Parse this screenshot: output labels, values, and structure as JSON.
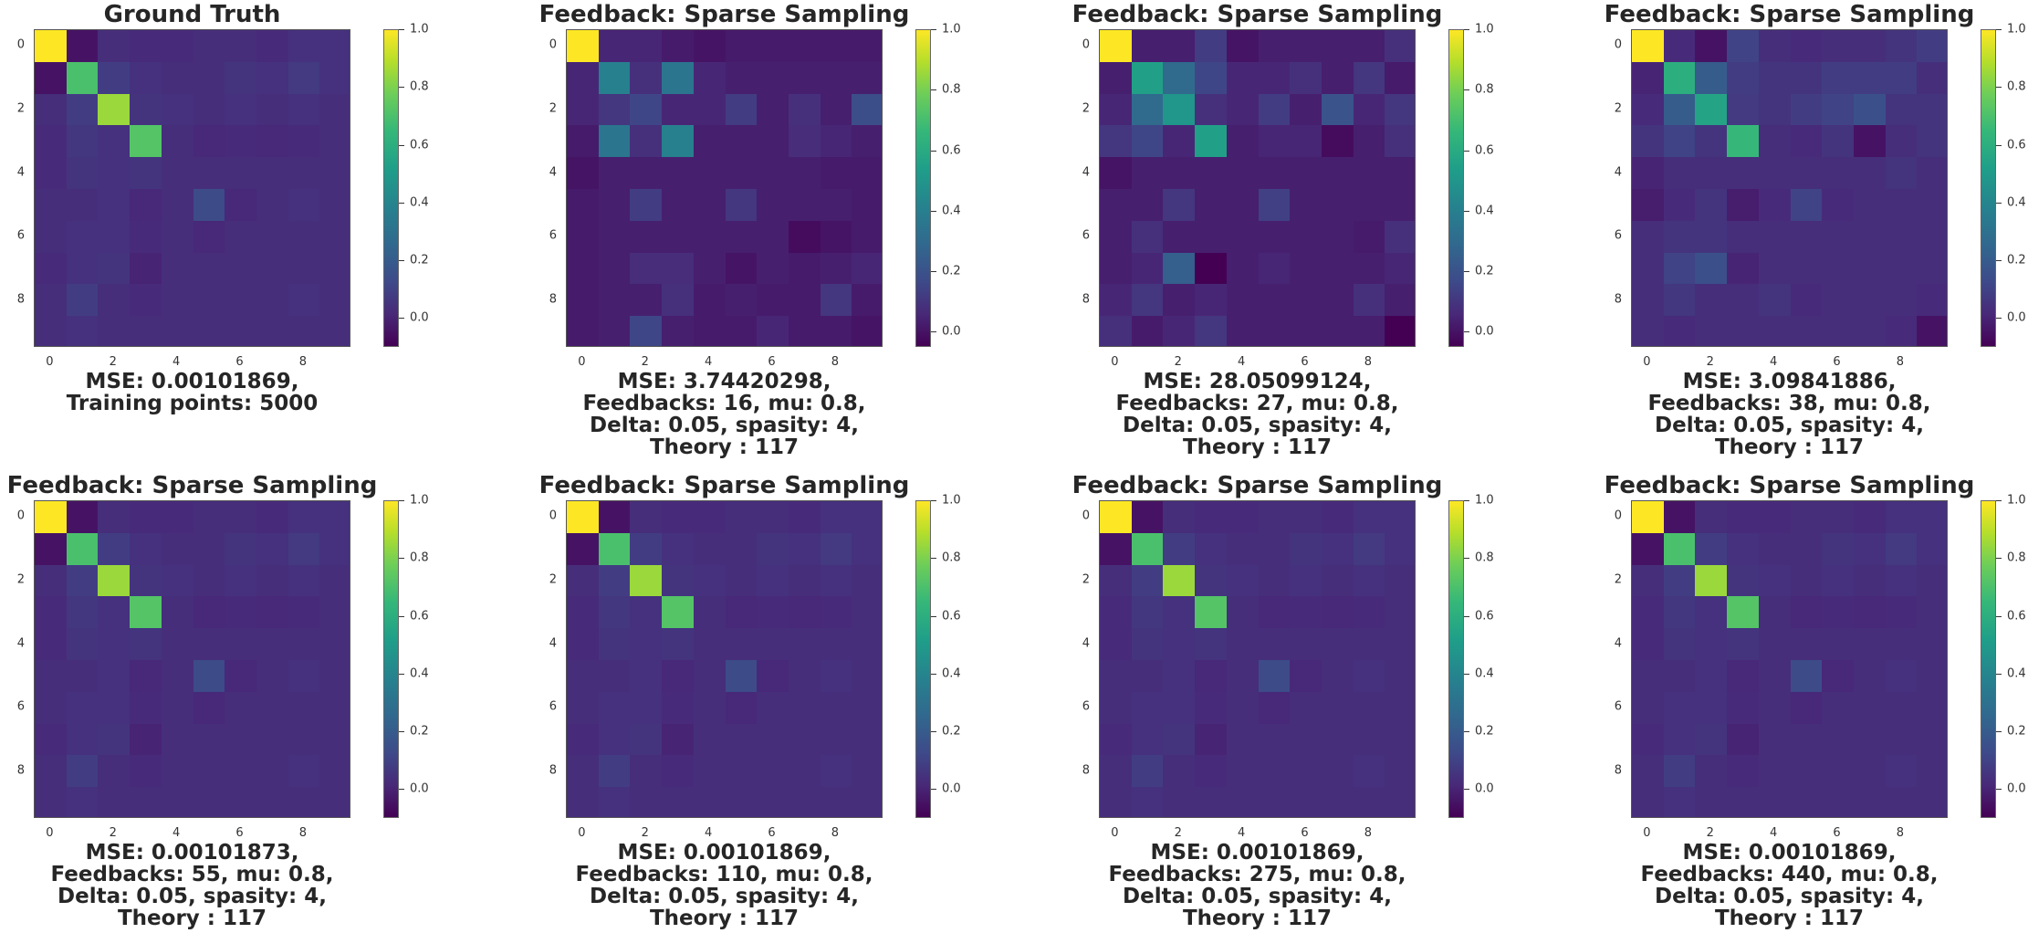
{
  "chart_data": [
    {
      "type": "heatmap",
      "title": "Ground Truth",
      "caption": [
        "MSE: 0.00101869,",
        "Training points: 5000"
      ],
      "xticks": [
        "0",
        "2",
        "4",
        "6",
        "8"
      ],
      "yticks": [
        "0",
        "2",
        "4",
        "6",
        "8"
      ],
      "colorbar_ticks": [
        "1.0",
        "0.8",
        "0.6",
        "0.4",
        "0.2",
        "0.0"
      ],
      "colorbar_range": [
        -0.1,
        1.0
      ],
      "colormap": "viridis",
      "values": [
        [
          1.0,
          -0.05,
          0.03,
          0.02,
          0.02,
          0.03,
          0.03,
          0.02,
          0.04,
          0.04
        ],
        [
          -0.05,
          0.7,
          0.08,
          0.04,
          0.03,
          0.03,
          0.05,
          0.04,
          0.07,
          0.04
        ],
        [
          0.03,
          0.08,
          0.85,
          0.05,
          0.04,
          0.03,
          0.04,
          0.03,
          0.04,
          0.03
        ],
        [
          0.02,
          0.06,
          0.04,
          0.72,
          0.03,
          0.01,
          0.02,
          0.01,
          0.02,
          0.03
        ],
        [
          0.02,
          0.05,
          0.04,
          0.05,
          0.03,
          0.03,
          0.03,
          0.03,
          0.03,
          0.03
        ],
        [
          0.03,
          0.03,
          0.04,
          0.01,
          0.03,
          0.13,
          0.01,
          0.03,
          0.04,
          0.03
        ],
        [
          0.03,
          0.04,
          0.04,
          0.02,
          0.03,
          0.01,
          0.03,
          0.03,
          0.03,
          0.03
        ],
        [
          0.02,
          0.04,
          0.05,
          0.0,
          0.03,
          0.03,
          0.03,
          0.03,
          0.03,
          0.03
        ],
        [
          0.03,
          0.08,
          0.03,
          0.02,
          0.03,
          0.03,
          0.03,
          0.03,
          0.04,
          0.03
        ],
        [
          0.03,
          0.04,
          0.03,
          0.03,
          0.03,
          0.03,
          0.03,
          0.03,
          0.03,
          0.03
        ]
      ]
    },
    {
      "type": "heatmap",
      "title": "Feedback: Sparse Sampling",
      "caption": [
        "MSE: 3.74420298,",
        "Feedbacks: 16, mu: 0.8,",
        "Delta: 0.05, spasity: 4,",
        "Theory : 117"
      ],
      "xticks": [
        "0",
        "2",
        "4",
        "6",
        "8"
      ],
      "yticks": [
        "0",
        "2",
        "4",
        "6",
        "8"
      ],
      "colorbar_ticks": [
        "1.0",
        "0.8",
        "0.6",
        "0.4",
        "0.2",
        "0.0"
      ],
      "colorbar_range": [
        -0.05,
        1.0
      ],
      "colormap": "viridis",
      "values": [
        [
          1.0,
          0.05,
          0.05,
          0.02,
          0.0,
          0.02,
          0.02,
          0.02,
          0.02,
          0.02
        ],
        [
          0.05,
          0.4,
          0.08,
          0.35,
          0.05,
          0.03,
          0.03,
          0.03,
          0.03,
          0.03
        ],
        [
          0.05,
          0.1,
          0.15,
          0.05,
          0.05,
          0.12,
          0.03,
          0.08,
          0.03,
          0.18
        ],
        [
          0.02,
          0.35,
          0.08,
          0.4,
          0.03,
          0.03,
          0.03,
          0.07,
          0.05,
          0.03
        ],
        [
          0.0,
          0.03,
          0.03,
          0.03,
          0.03,
          0.03,
          0.03,
          0.03,
          0.02,
          0.02
        ],
        [
          0.02,
          0.03,
          0.12,
          0.03,
          0.03,
          0.1,
          0.03,
          0.03,
          0.03,
          0.02
        ],
        [
          0.02,
          0.03,
          0.03,
          0.03,
          0.03,
          0.03,
          0.03,
          -0.02,
          0.0,
          0.02
        ],
        [
          0.02,
          0.03,
          0.07,
          0.07,
          0.03,
          0.0,
          0.03,
          0.02,
          0.03,
          0.05
        ],
        [
          0.02,
          0.03,
          0.03,
          0.08,
          0.02,
          0.03,
          0.02,
          0.02,
          0.1,
          0.02
        ],
        [
          0.02,
          0.03,
          0.15,
          0.03,
          0.02,
          0.02,
          0.05,
          0.02,
          0.02,
          0.0
        ]
      ]
    },
    {
      "type": "heatmap",
      "title": "Feedback: Sparse Sampling",
      "caption": [
        "MSE: 28.05099124,",
        "Feedbacks: 27, mu: 0.8,",
        "Delta: 0.05, spasity: 4,",
        "Theory : 117"
      ],
      "xticks": [
        "0",
        "2",
        "4",
        "6",
        "8"
      ],
      "yticks": [
        "0",
        "2",
        "4",
        "6",
        "8"
      ],
      "colorbar_ticks": [
        "1.0",
        "0.8",
        "0.6",
        "0.4",
        "0.2",
        "0.0"
      ],
      "colorbar_range": [
        -0.05,
        1.0
      ],
      "colormap": "viridis",
      "values": [
        [
          1.0,
          0.03,
          0.03,
          0.12,
          0.0,
          0.03,
          0.03,
          0.03,
          0.03,
          0.08
        ],
        [
          0.03,
          0.55,
          0.3,
          0.15,
          0.05,
          0.05,
          0.08,
          0.03,
          0.1,
          0.02
        ],
        [
          0.05,
          0.3,
          0.5,
          0.08,
          0.05,
          0.12,
          0.03,
          0.2,
          0.05,
          0.1
        ],
        [
          0.1,
          0.15,
          0.05,
          0.55,
          0.03,
          0.05,
          0.05,
          -0.02,
          0.03,
          0.08
        ],
        [
          0.0,
          0.03,
          0.03,
          0.03,
          0.03,
          0.03,
          0.03,
          0.03,
          0.03,
          0.03
        ],
        [
          0.03,
          0.03,
          0.1,
          0.03,
          0.03,
          0.13,
          0.03,
          0.03,
          0.03,
          0.03
        ],
        [
          0.03,
          0.08,
          0.03,
          0.03,
          0.03,
          0.03,
          0.03,
          0.03,
          0.02,
          0.08
        ],
        [
          0.03,
          0.05,
          0.25,
          -0.05,
          0.03,
          0.05,
          0.03,
          0.03,
          0.03,
          0.05
        ],
        [
          0.05,
          0.1,
          0.03,
          0.05,
          0.03,
          0.03,
          0.03,
          0.03,
          0.08,
          0.03
        ],
        [
          0.08,
          0.02,
          0.05,
          0.1,
          0.03,
          0.03,
          0.03,
          0.03,
          0.03,
          -0.05
        ]
      ]
    },
    {
      "type": "heatmap",
      "title": "Feedback: Sparse Sampling",
      "caption": [
        "MSE: 3.09841886,",
        "Feedbacks: 38, mu: 0.8,",
        "Delta: 0.05, spasity: 4,",
        "Theory : 117"
      ],
      "xticks": [
        "0",
        "2",
        "4",
        "6",
        "8"
      ],
      "yticks": [
        "0",
        "2",
        "4",
        "6",
        "8"
      ],
      "colorbar_ticks": [
        "1.0",
        "0.8",
        "0.6",
        "0.4",
        "0.2",
        "0.0"
      ],
      "colorbar_range": [
        -0.1,
        1.0
      ],
      "colormap": "viridis",
      "values": [
        [
          1.0,
          0.02,
          -0.05,
          0.1,
          0.03,
          0.02,
          0.03,
          0.03,
          0.05,
          0.08
        ],
        [
          0.0,
          0.6,
          0.2,
          0.08,
          0.05,
          0.05,
          0.08,
          0.08,
          0.08,
          0.03
        ],
        [
          0.02,
          0.2,
          0.55,
          0.07,
          0.05,
          0.08,
          0.1,
          0.15,
          0.05,
          0.05
        ],
        [
          0.05,
          0.1,
          0.05,
          0.65,
          0.03,
          0.02,
          0.05,
          -0.05,
          0.03,
          0.05
        ],
        [
          0.0,
          0.03,
          0.03,
          0.03,
          0.03,
          0.03,
          0.03,
          0.03,
          0.05,
          0.03
        ],
        [
          -0.02,
          0.02,
          0.05,
          -0.02,
          0.02,
          0.1,
          0.02,
          0.03,
          0.03,
          0.03
        ],
        [
          0.03,
          0.05,
          0.05,
          0.03,
          0.03,
          0.03,
          0.03,
          0.03,
          0.03,
          0.03
        ],
        [
          0.03,
          0.1,
          0.15,
          0.0,
          0.03,
          0.03,
          0.03,
          0.03,
          0.03,
          0.03
        ],
        [
          0.03,
          0.06,
          0.03,
          0.03,
          0.05,
          0.02,
          0.03,
          0.03,
          0.03,
          0.02
        ],
        [
          0.03,
          0.02,
          0.03,
          0.03,
          0.03,
          0.03,
          0.03,
          0.03,
          0.02,
          -0.05
        ]
      ]
    },
    {
      "type": "heatmap",
      "title": "Feedback: Sparse Sampling",
      "caption": [
        "MSE: 0.00101873,",
        "Feedbacks: 55, mu: 0.8,",
        "Delta: 0.05, spasity: 4,",
        "Theory : 117"
      ],
      "xticks": [
        "0",
        "2",
        "4",
        "6",
        "8"
      ],
      "yticks": [
        "0",
        "2",
        "4",
        "6",
        "8"
      ],
      "colorbar_ticks": [
        "1.0",
        "0.8",
        "0.6",
        "0.4",
        "0.2",
        "0.0"
      ],
      "colorbar_range": [
        -0.1,
        1.0
      ],
      "colormap": "viridis",
      "values": [
        [
          1.0,
          -0.05,
          0.03,
          0.02,
          0.02,
          0.03,
          0.03,
          0.02,
          0.04,
          0.04
        ],
        [
          -0.05,
          0.7,
          0.08,
          0.04,
          0.03,
          0.03,
          0.05,
          0.04,
          0.07,
          0.04
        ],
        [
          0.03,
          0.08,
          0.85,
          0.05,
          0.04,
          0.03,
          0.04,
          0.03,
          0.04,
          0.03
        ],
        [
          0.02,
          0.06,
          0.04,
          0.72,
          0.03,
          0.01,
          0.02,
          0.01,
          0.02,
          0.03
        ],
        [
          0.02,
          0.05,
          0.04,
          0.05,
          0.03,
          0.03,
          0.03,
          0.03,
          0.03,
          0.03
        ],
        [
          0.03,
          0.03,
          0.04,
          0.01,
          0.03,
          0.13,
          0.01,
          0.03,
          0.04,
          0.03
        ],
        [
          0.03,
          0.04,
          0.04,
          0.02,
          0.03,
          0.01,
          0.03,
          0.03,
          0.03,
          0.03
        ],
        [
          0.02,
          0.04,
          0.05,
          0.0,
          0.03,
          0.03,
          0.03,
          0.03,
          0.03,
          0.03
        ],
        [
          0.03,
          0.08,
          0.03,
          0.02,
          0.03,
          0.03,
          0.03,
          0.03,
          0.04,
          0.03
        ],
        [
          0.03,
          0.04,
          0.03,
          0.03,
          0.03,
          0.03,
          0.03,
          0.03,
          0.03,
          0.03
        ]
      ]
    },
    {
      "type": "heatmap",
      "title": "Feedback: Sparse Sampling",
      "caption": [
        "MSE: 0.00101869,",
        "Feedbacks: 110, mu: 0.8,",
        "Delta: 0.05, spasity: 4,",
        "Theory : 117"
      ],
      "xticks": [
        "0",
        "2",
        "4",
        "6",
        "8"
      ],
      "yticks": [
        "0",
        "2",
        "4",
        "6",
        "8"
      ],
      "colorbar_ticks": [
        "1.0",
        "0.8",
        "0.6",
        "0.4",
        "0.2",
        "0.0"
      ],
      "colorbar_range": [
        -0.1,
        1.0
      ],
      "colormap": "viridis",
      "values": [
        [
          1.0,
          -0.05,
          0.03,
          0.02,
          0.02,
          0.03,
          0.03,
          0.02,
          0.04,
          0.04
        ],
        [
          -0.05,
          0.7,
          0.08,
          0.04,
          0.03,
          0.03,
          0.05,
          0.04,
          0.07,
          0.04
        ],
        [
          0.03,
          0.08,
          0.85,
          0.05,
          0.04,
          0.03,
          0.04,
          0.03,
          0.04,
          0.03
        ],
        [
          0.02,
          0.06,
          0.04,
          0.72,
          0.03,
          0.01,
          0.02,
          0.01,
          0.02,
          0.03
        ],
        [
          0.02,
          0.05,
          0.04,
          0.05,
          0.03,
          0.03,
          0.03,
          0.03,
          0.03,
          0.03
        ],
        [
          0.03,
          0.03,
          0.04,
          0.01,
          0.03,
          0.13,
          0.01,
          0.03,
          0.04,
          0.03
        ],
        [
          0.03,
          0.04,
          0.04,
          0.02,
          0.03,
          0.01,
          0.03,
          0.03,
          0.03,
          0.03
        ],
        [
          0.02,
          0.04,
          0.05,
          0.0,
          0.03,
          0.03,
          0.03,
          0.03,
          0.03,
          0.03
        ],
        [
          0.03,
          0.08,
          0.03,
          0.02,
          0.03,
          0.03,
          0.03,
          0.03,
          0.04,
          0.03
        ],
        [
          0.03,
          0.04,
          0.03,
          0.03,
          0.03,
          0.03,
          0.03,
          0.03,
          0.03,
          0.03
        ]
      ]
    },
    {
      "type": "heatmap",
      "title": "Feedback: Sparse Sampling",
      "caption": [
        "MSE: 0.00101869,",
        "Feedbacks: 275, mu: 0.8,",
        "Delta: 0.05, spasity: 4,",
        "Theory : 117"
      ],
      "xticks": [
        "0",
        "2",
        "4",
        "6",
        "8"
      ],
      "yticks": [
        "0",
        "2",
        "4",
        "6",
        "8"
      ],
      "colorbar_ticks": [
        "1.0",
        "0.8",
        "0.6",
        "0.4",
        "0.2",
        "0.0"
      ],
      "colorbar_range": [
        -0.1,
        1.0
      ],
      "colormap": "viridis",
      "values": [
        [
          1.0,
          -0.05,
          0.03,
          0.02,
          0.02,
          0.03,
          0.03,
          0.02,
          0.04,
          0.04
        ],
        [
          -0.05,
          0.7,
          0.08,
          0.04,
          0.03,
          0.03,
          0.05,
          0.04,
          0.07,
          0.04
        ],
        [
          0.03,
          0.08,
          0.85,
          0.05,
          0.04,
          0.03,
          0.04,
          0.03,
          0.04,
          0.03
        ],
        [
          0.02,
          0.06,
          0.04,
          0.72,
          0.03,
          0.01,
          0.02,
          0.01,
          0.02,
          0.03
        ],
        [
          0.02,
          0.05,
          0.04,
          0.05,
          0.03,
          0.03,
          0.03,
          0.03,
          0.03,
          0.03
        ],
        [
          0.03,
          0.03,
          0.04,
          0.01,
          0.03,
          0.13,
          0.01,
          0.03,
          0.04,
          0.03
        ],
        [
          0.03,
          0.04,
          0.04,
          0.02,
          0.03,
          0.01,
          0.03,
          0.03,
          0.03,
          0.03
        ],
        [
          0.02,
          0.04,
          0.05,
          0.0,
          0.03,
          0.03,
          0.03,
          0.03,
          0.03,
          0.03
        ],
        [
          0.03,
          0.08,
          0.03,
          0.02,
          0.03,
          0.03,
          0.03,
          0.03,
          0.04,
          0.03
        ],
        [
          0.03,
          0.04,
          0.03,
          0.03,
          0.03,
          0.03,
          0.03,
          0.03,
          0.03,
          0.03
        ]
      ]
    },
    {
      "type": "heatmap",
      "title": "Feedback: Sparse Sampling",
      "caption": [
        "MSE: 0.00101869,",
        "Feedbacks: 440, mu: 0.8,",
        "Delta: 0.05, spasity: 4,",
        "Theory : 117"
      ],
      "xticks": [
        "0",
        "2",
        "4",
        "6",
        "8"
      ],
      "yticks": [
        "0",
        "2",
        "4",
        "6",
        "8"
      ],
      "colorbar_ticks": [
        "1.0",
        "0.8",
        "0.6",
        "0.4",
        "0.2",
        "0.0"
      ],
      "colorbar_range": [
        -0.1,
        1.0
      ],
      "colormap": "viridis",
      "values": [
        [
          1.0,
          -0.05,
          0.03,
          0.02,
          0.02,
          0.03,
          0.03,
          0.02,
          0.04,
          0.04
        ],
        [
          -0.05,
          0.7,
          0.08,
          0.04,
          0.03,
          0.03,
          0.05,
          0.04,
          0.07,
          0.04
        ],
        [
          0.03,
          0.08,
          0.85,
          0.05,
          0.04,
          0.03,
          0.04,
          0.03,
          0.04,
          0.03
        ],
        [
          0.02,
          0.06,
          0.04,
          0.72,
          0.03,
          0.01,
          0.02,
          0.01,
          0.02,
          0.03
        ],
        [
          0.02,
          0.05,
          0.04,
          0.05,
          0.03,
          0.03,
          0.03,
          0.03,
          0.03,
          0.03
        ],
        [
          0.03,
          0.03,
          0.04,
          0.01,
          0.03,
          0.13,
          0.01,
          0.03,
          0.04,
          0.03
        ],
        [
          0.03,
          0.04,
          0.04,
          0.02,
          0.03,
          0.01,
          0.03,
          0.03,
          0.03,
          0.03
        ],
        [
          0.02,
          0.04,
          0.05,
          0.0,
          0.03,
          0.03,
          0.03,
          0.03,
          0.03,
          0.03
        ],
        [
          0.03,
          0.08,
          0.03,
          0.02,
          0.03,
          0.03,
          0.03,
          0.03,
          0.04,
          0.03
        ],
        [
          0.03,
          0.04,
          0.03,
          0.03,
          0.03,
          0.03,
          0.03,
          0.03,
          0.03,
          0.03
        ]
      ]
    }
  ]
}
